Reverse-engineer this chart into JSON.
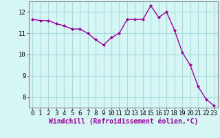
{
  "x": [
    0,
    1,
    2,
    3,
    4,
    5,
    6,
    7,
    8,
    9,
    10,
    11,
    12,
    13,
    14,
    15,
    16,
    17,
    18,
    19,
    20,
    21,
    22,
    23
  ],
  "y": [
    11.65,
    11.6,
    11.6,
    11.45,
    11.35,
    11.2,
    11.2,
    11.0,
    10.7,
    10.45,
    10.8,
    11.0,
    11.65,
    11.65,
    11.65,
    12.3,
    11.75,
    12.0,
    11.15,
    10.1,
    9.5,
    8.5,
    7.9,
    7.6
  ],
  "line_color": "#990099",
  "marker": "D",
  "marker_size": 2.0,
  "bg_color": "#d6f5f5",
  "grid_color": "#aadddd",
  "xlabel": "Windchill (Refroidissement éolien,°C)",
  "ylabel": "",
  "ylim": [
    7.5,
    12.5
  ],
  "xlim": [
    -0.5,
    23.5
  ],
  "yticks": [
    8,
    9,
    10,
    11,
    12
  ],
  "xticks": [
    0,
    1,
    2,
    3,
    4,
    5,
    6,
    7,
    8,
    9,
    10,
    11,
    12,
    13,
    14,
    15,
    16,
    17,
    18,
    19,
    20,
    21,
    22,
    23
  ],
  "tick_fontsize": 6.5,
  "xlabel_fontsize": 7.0,
  "linewidth": 1.0
}
